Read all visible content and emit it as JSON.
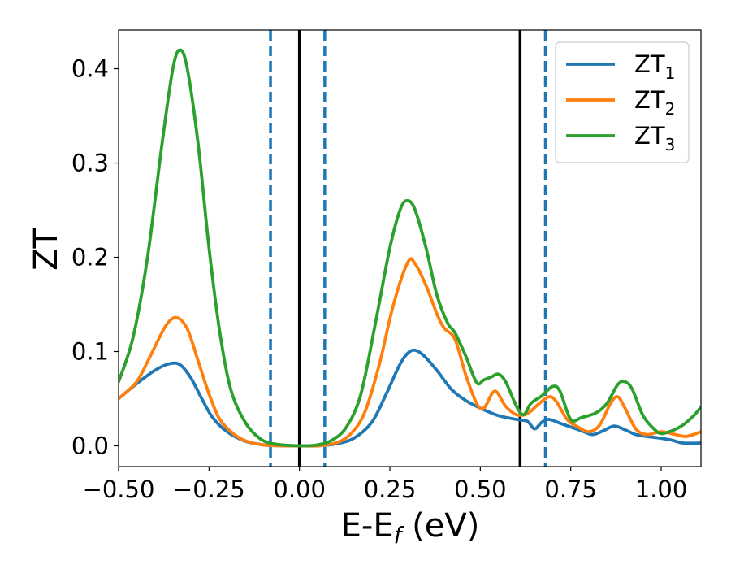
{
  "chart_data": {
    "type": "line",
    "xlabel": "E-E",
    "xlabel_sub": "f",
    "xlabel_unit": " (eV)",
    "ylabel": "ZT",
    "xlim": [
      -0.5,
      1.11
    ],
    "ylim": [
      -0.022,
      0.441
    ],
    "xticks": [
      -0.5,
      -0.25,
      0.0,
      0.25,
      0.5,
      0.75,
      1.0
    ],
    "xtick_labels": [
      "−0.50",
      "−0.25",
      "0.00",
      "0.25",
      "0.50",
      "0.75",
      "1.00"
    ],
    "yticks": [
      0.0,
      0.1,
      0.2,
      0.3,
      0.4
    ],
    "ytick_labels": [
      "0.0",
      "0.1",
      "0.2",
      "0.3",
      "0.4"
    ],
    "grid": false,
    "legend_position": "top-right",
    "vlines": [
      {
        "x": -0.08,
        "style": "dashed",
        "color": "#1f77b4"
      },
      {
        "x": 0.0,
        "style": "solid",
        "color": "#000000"
      },
      {
        "x": 0.07,
        "style": "dashed",
        "color": "#1f77b4"
      },
      {
        "x": 0.61,
        "style": "solid",
        "color": "#000000"
      },
      {
        "x": 0.68,
        "style": "dashed",
        "color": "#1f77b4"
      }
    ],
    "series": [
      {
        "name": "ZT",
        "sub": "1",
        "color": "#1f77b4",
        "points": [
          [
            -0.5,
            0.05
          ],
          [
            -0.45,
            0.066
          ],
          [
            -0.4,
            0.08
          ],
          [
            -0.36,
            0.087
          ],
          [
            -0.33,
            0.086
          ],
          [
            -0.3,
            0.072
          ],
          [
            -0.27,
            0.05
          ],
          [
            -0.24,
            0.03
          ],
          [
            -0.2,
            0.015
          ],
          [
            -0.15,
            0.005
          ],
          [
            -0.1,
            0.001
          ],
          [
            -0.05,
            0.0
          ],
          [
            0.0,
            0.0
          ],
          [
            0.05,
            0.0
          ],
          [
            0.1,
            0.002
          ],
          [
            0.15,
            0.008
          ],
          [
            0.2,
            0.025
          ],
          [
            0.24,
            0.055
          ],
          [
            0.28,
            0.088
          ],
          [
            0.31,
            0.101
          ],
          [
            0.34,
            0.097
          ],
          [
            0.38,
            0.08
          ],
          [
            0.42,
            0.06
          ],
          [
            0.46,
            0.048
          ],
          [
            0.5,
            0.04
          ],
          [
            0.55,
            0.032
          ],
          [
            0.6,
            0.028
          ],
          [
            0.63,
            0.026
          ],
          [
            0.65,
            0.018
          ],
          [
            0.67,
            0.025
          ],
          [
            0.69,
            0.028
          ],
          [
            0.72,
            0.024
          ],
          [
            0.75,
            0.02
          ],
          [
            0.78,
            0.016
          ],
          [
            0.81,
            0.012
          ],
          [
            0.84,
            0.016
          ],
          [
            0.87,
            0.021
          ],
          [
            0.9,
            0.017
          ],
          [
            0.93,
            0.012
          ],
          [
            0.96,
            0.01
          ],
          [
            1.0,
            0.008
          ],
          [
            1.03,
            0.006
          ],
          [
            1.06,
            0.003
          ],
          [
            1.11,
            0.003
          ]
        ]
      },
      {
        "name": "ZT",
        "sub": "2",
        "color": "#ff7f0e",
        "points": [
          [
            -0.5,
            0.05
          ],
          [
            -0.45,
            0.068
          ],
          [
            -0.41,
            0.097
          ],
          [
            -0.37,
            0.127
          ],
          [
            -0.34,
            0.136
          ],
          [
            -0.31,
            0.124
          ],
          [
            -0.28,
            0.09
          ],
          [
            -0.25,
            0.055
          ],
          [
            -0.22,
            0.028
          ],
          [
            -0.18,
            0.012
          ],
          [
            -0.14,
            0.004
          ],
          [
            -0.1,
            0.001
          ],
          [
            -0.05,
            0.0
          ],
          [
            0.0,
            0.0
          ],
          [
            0.05,
            0.0
          ],
          [
            0.1,
            0.003
          ],
          [
            0.14,
            0.012
          ],
          [
            0.18,
            0.035
          ],
          [
            0.22,
            0.085
          ],
          [
            0.26,
            0.15
          ],
          [
            0.3,
            0.195
          ],
          [
            0.32,
            0.193
          ],
          [
            0.35,
            0.17
          ],
          [
            0.38,
            0.14
          ],
          [
            0.4,
            0.125
          ],
          [
            0.43,
            0.113
          ],
          [
            0.46,
            0.075
          ],
          [
            0.49,
            0.045
          ],
          [
            0.51,
            0.04
          ],
          [
            0.54,
            0.058
          ],
          [
            0.57,
            0.042
          ],
          [
            0.6,
            0.033
          ],
          [
            0.63,
            0.034
          ],
          [
            0.66,
            0.044
          ],
          [
            0.69,
            0.052
          ],
          [
            0.71,
            0.047
          ],
          [
            0.74,
            0.028
          ],
          [
            0.77,
            0.02
          ],
          [
            0.8,
            0.015
          ],
          [
            0.83,
            0.022
          ],
          [
            0.86,
            0.045
          ],
          [
            0.88,
            0.052
          ],
          [
            0.9,
            0.04
          ],
          [
            0.93,
            0.018
          ],
          [
            0.96,
            0.012
          ],
          [
            1.0,
            0.015
          ],
          [
            1.04,
            0.012
          ],
          [
            1.07,
            0.01
          ],
          [
            1.11,
            0.015
          ]
        ]
      },
      {
        "name": "ZT",
        "sub": "3",
        "color": "#2ca02c",
        "points": [
          [
            -0.5,
            0.068
          ],
          [
            -0.46,
            0.115
          ],
          [
            -0.42,
            0.2
          ],
          [
            -0.38,
            0.32
          ],
          [
            -0.35,
            0.4
          ],
          [
            -0.33,
            0.42
          ],
          [
            -0.31,
            0.4
          ],
          [
            -0.28,
            0.32
          ],
          [
            -0.25,
            0.21
          ],
          [
            -0.22,
            0.12
          ],
          [
            -0.19,
            0.06
          ],
          [
            -0.15,
            0.025
          ],
          [
            -0.11,
            0.008
          ],
          [
            -0.07,
            0.002
          ],
          [
            0.0,
            0.0
          ],
          [
            0.05,
            0.001
          ],
          [
            0.09,
            0.006
          ],
          [
            0.13,
            0.02
          ],
          [
            0.17,
            0.055
          ],
          [
            0.21,
            0.13
          ],
          [
            0.25,
            0.21
          ],
          [
            0.28,
            0.252
          ],
          [
            0.3,
            0.26
          ],
          [
            0.32,
            0.25
          ],
          [
            0.35,
            0.21
          ],
          [
            0.38,
            0.16
          ],
          [
            0.41,
            0.13
          ],
          [
            0.43,
            0.12
          ],
          [
            0.46,
            0.095
          ],
          [
            0.49,
            0.067
          ],
          [
            0.51,
            0.07
          ],
          [
            0.53,
            0.073
          ],
          [
            0.55,
            0.076
          ],
          [
            0.57,
            0.068
          ],
          [
            0.6,
            0.042
          ],
          [
            0.62,
            0.033
          ],
          [
            0.64,
            0.045
          ],
          [
            0.67,
            0.053
          ],
          [
            0.7,
            0.063
          ],
          [
            0.72,
            0.058
          ],
          [
            0.75,
            0.028
          ],
          [
            0.78,
            0.03
          ],
          [
            0.82,
            0.035
          ],
          [
            0.85,
            0.045
          ],
          [
            0.88,
            0.065
          ],
          [
            0.9,
            0.068
          ],
          [
            0.92,
            0.06
          ],
          [
            0.95,
            0.032
          ],
          [
            0.98,
            0.018
          ],
          [
            1.0,
            0.013
          ],
          [
            1.03,
            0.016
          ],
          [
            1.06,
            0.022
          ],
          [
            1.09,
            0.032
          ],
          [
            1.11,
            0.041
          ]
        ]
      }
    ]
  }
}
